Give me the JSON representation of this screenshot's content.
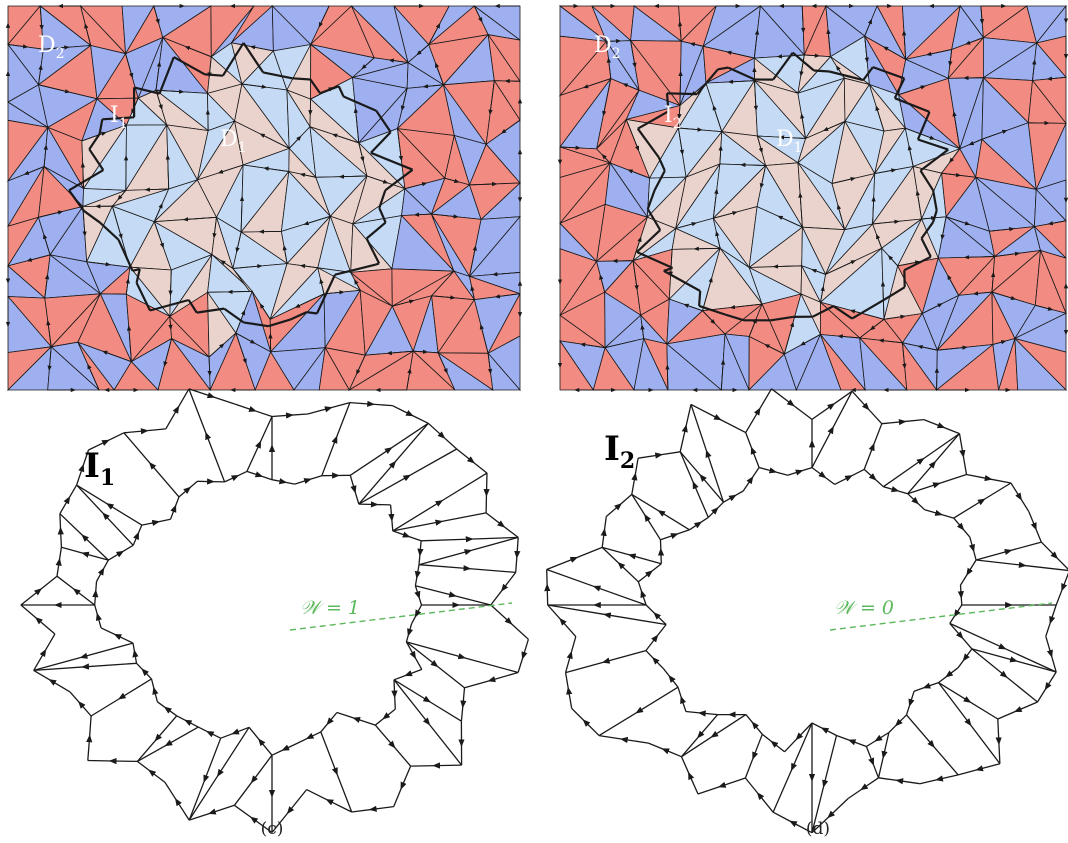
{
  "colors": {
    "red_tile": "#f28b82",
    "blue_tile": "#9fb0f0",
    "light_blue_tile": "#c5dbf5",
    "pink_tile": "#ebd3cd",
    "edge": "#1a1a1a",
    "winding_line": "#5cb85c"
  },
  "panels": [
    {
      "id": "a",
      "mosaic_labels": {
        "defect_outer": "D",
        "defect_outer_sub": "2",
        "defect_inner": "D",
        "defect_inner_sub": "1",
        "island": "I",
        "island_sub": "1"
      }
    },
    {
      "id": "b",
      "mosaic_labels": {
        "defect_outer": "D",
        "defect_outer_sub": "2",
        "defect_inner": "D",
        "defect_inner_sub": "1",
        "island": "I",
        "island_sub": "2"
      }
    },
    {
      "id": "c",
      "loop_label": "I",
      "loop_label_sub": "1",
      "winding_text": "𝒲 = 1",
      "caption": "(c)"
    },
    {
      "id": "d",
      "loop_label": "I",
      "loop_label_sub": "2",
      "winding_text": "𝒲 = 0",
      "caption": "(d)"
    }
  ]
}
